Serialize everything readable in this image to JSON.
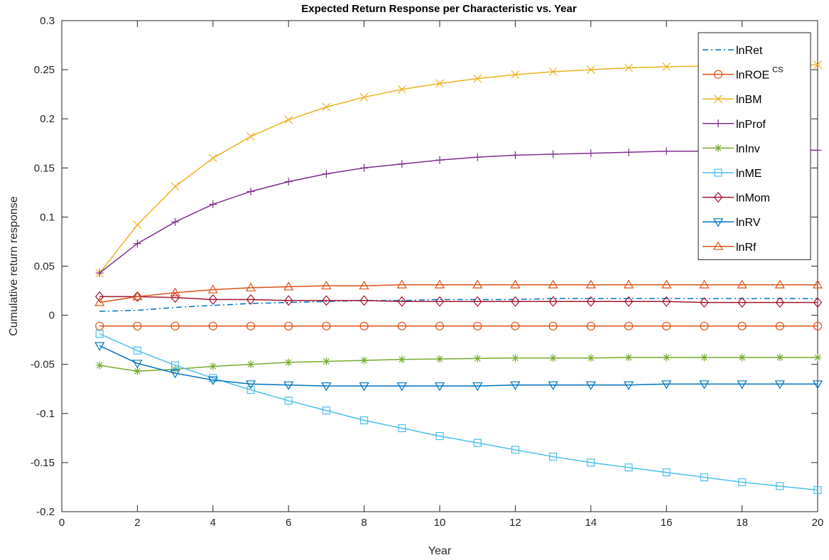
{
  "chart_data": {
    "type": "line",
    "title": "Expected Return Response per Characteristic vs. Year",
    "xlabel": "Year",
    "ylabel": "Cumulative return response",
    "xlim": [
      0,
      20
    ],
    "ylim": [
      -0.2,
      0.3
    ],
    "xticks": [
      0,
      2,
      4,
      6,
      8,
      10,
      12,
      14,
      16,
      18,
      20
    ],
    "yticks": [
      -0.2,
      -0.15,
      -0.1,
      -0.05,
      0,
      0.05,
      0.1,
      0.15,
      0.2,
      0.25,
      0.3
    ],
    "ytick_labels": [
      "-0.2",
      "-0.15",
      "-0.1",
      "-0.05",
      "0",
      "0.05",
      "0.1",
      "0.15",
      "0.2",
      "0.25",
      "0.3"
    ],
    "grid": false,
    "legend_position": "top-right",
    "x": [
      1,
      2,
      3,
      4,
      5,
      6,
      7,
      8,
      9,
      10,
      11,
      12,
      13,
      14,
      15,
      16,
      17,
      18,
      19,
      20
    ],
    "series": [
      {
        "name": "lnRet",
        "name_sup": "",
        "color": "#0072BD",
        "marker": "none",
        "dash": "dashdot",
        "values": [
          0.004,
          0.005,
          0.008,
          0.01,
          0.012,
          0.013,
          0.014,
          0.015,
          0.015,
          0.016,
          0.016,
          0.016,
          0.017,
          0.017,
          0.017,
          0.017,
          0.017,
          0.017,
          0.017,
          0.017
        ]
      },
      {
        "name": "lnROE",
        "name_sup": "CS",
        "color": "#D95319",
        "marker": "circle",
        "dash": "solid",
        "values": [
          -0.011,
          -0.011,
          -0.011,
          -0.011,
          -0.011,
          -0.011,
          -0.011,
          -0.011,
          -0.011,
          -0.011,
          -0.011,
          -0.011,
          -0.011,
          -0.011,
          -0.011,
          -0.011,
          -0.011,
          -0.011,
          -0.011,
          -0.011
        ]
      },
      {
        "name": "lnBM",
        "name_sup": "",
        "color": "#EDB120",
        "marker": "x",
        "dash": "solid",
        "values": [
          0.043,
          0.092,
          0.131,
          0.16,
          0.182,
          0.199,
          0.212,
          0.222,
          0.23,
          0.236,
          0.241,
          0.245,
          0.248,
          0.25,
          0.252,
          0.253,
          0.254,
          0.254,
          0.255,
          0.255
        ]
      },
      {
        "name": "lnProf",
        "name_sup": "",
        "color": "#7E2F8E",
        "marker": "plus",
        "dash": "solid",
        "values": [
          0.043,
          0.073,
          0.095,
          0.113,
          0.126,
          0.136,
          0.144,
          0.15,
          0.154,
          0.158,
          0.161,
          0.163,
          0.164,
          0.165,
          0.166,
          0.167,
          0.167,
          0.168,
          0.168,
          0.168
        ]
      },
      {
        "name": "lnInv",
        "name_sup": "",
        "color": "#77AC30",
        "marker": "asterisk",
        "dash": "solid",
        "values": [
          -0.051,
          -0.057,
          -0.055,
          -0.052,
          -0.05,
          -0.048,
          -0.047,
          -0.046,
          -0.045,
          -0.0445,
          -0.044,
          -0.0435,
          -0.0435,
          -0.0435,
          -0.043,
          -0.043,
          -0.043,
          -0.043,
          -0.043,
          -0.043
        ]
      },
      {
        "name": "lnME",
        "name_sup": "",
        "color": "#4DBEEE",
        "marker": "square",
        "dash": "solid",
        "values": [
          -0.019,
          -0.036,
          -0.051,
          -0.064,
          -0.076,
          -0.087,
          -0.097,
          -0.107,
          -0.115,
          -0.123,
          -0.13,
          -0.137,
          -0.144,
          -0.15,
          -0.155,
          -0.16,
          -0.165,
          -0.17,
          -0.174,
          -0.178
        ]
      },
      {
        "name": "lnMom",
        "name_sup": "",
        "color": "#A2142F",
        "marker": "diamond",
        "dash": "solid",
        "values": [
          0.019,
          0.019,
          0.018,
          0.016,
          0.016,
          0.015,
          0.015,
          0.015,
          0.014,
          0.014,
          0.014,
          0.014,
          0.014,
          0.014,
          0.014,
          0.014,
          0.013,
          0.013,
          0.013,
          0.013
        ]
      },
      {
        "name": "lnRV",
        "name_sup": "",
        "color": "#0072BD",
        "marker": "triangle-down",
        "dash": "solid",
        "values": [
          -0.031,
          -0.049,
          -0.059,
          -0.066,
          -0.07,
          -0.071,
          -0.072,
          -0.072,
          -0.072,
          -0.072,
          -0.072,
          -0.071,
          -0.071,
          -0.071,
          -0.071,
          -0.07,
          -0.07,
          -0.07,
          -0.07,
          -0.07
        ]
      },
      {
        "name": "lnRf",
        "name_sup": "",
        "color": "#D95319",
        "marker": "triangle-up",
        "dash": "solid",
        "values": [
          0.013,
          0.019,
          0.023,
          0.026,
          0.028,
          0.029,
          0.03,
          0.03,
          0.031,
          0.031,
          0.031,
          0.031,
          0.031,
          0.031,
          0.031,
          0.031,
          0.031,
          0.031,
          0.031,
          0.031
        ]
      }
    ]
  }
}
